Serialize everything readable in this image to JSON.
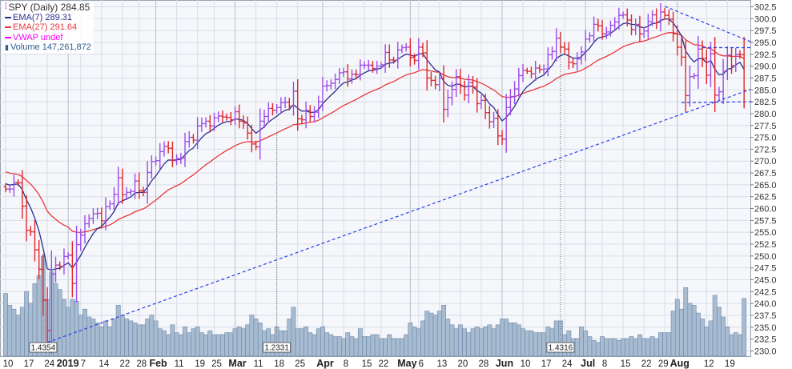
{
  "legend": {
    "price": "SPY (Daily) 284.85",
    "ema7": "EMA(7) 289.31",
    "ema27": "EMA(27) 291.64",
    "vwap": "VWAP undef",
    "volume": "Volume 147,261,872"
  },
  "colors": {
    "up": "#9b4dea",
    "down": "#e0262a",
    "ema7": "#2b2e8f",
    "ema27": "#e8393c",
    "vwap": "#ff00ff",
    "volume_fill": "#a7bbd1",
    "volume_stroke": "#6f89a8",
    "trendline": "#2b3fe8",
    "grid": "#d9dee7",
    "plot_bg": "#f5f7fb"
  },
  "chart_data": {
    "type": "ohlc",
    "title": "SPY (Daily)",
    "symbol": "SPY",
    "ylim": [
      230.0,
      302.5
    ],
    "y_tick_step": 2.5,
    "grid": true,
    "legend_placement": "top-left",
    "ema7_seed": 265.6,
    "ema27_seed": 268.0,
    "closes": [
      264.1,
      264.1,
      265.5,
      265.4,
      260.5,
      255.4,
      255.1,
      251.3,
      247.2,
      240.7,
      234.3,
      246.2,
      248.1,
      247.8,
      249.9,
      250.2,
      244.2,
      252.4,
      254.4,
      256.8,
      257.9,
      258.9,
      259.0,
      257.4,
      260.4,
      261.0,
      263.0,
      266.5,
      262.9,
      263.4,
      263.6,
      265.8,
      263.8,
      263.4,
      267.6,
      269.9,
      270.1,
      272.0,
      273.1,
      272.7,
      270.1,
      270.5,
      270.6,
      274.1,
      275.0,
      274.4,
      277.4,
      277.9,
      278.4,
      277.4,
      279.1,
      279.5,
      279.3,
      279.2,
      278.7,
      280.4,
      278.4,
      278.0,
      275.9,
      273.6,
      273.0,
      278.4,
      279.4,
      281.1,
      280.7,
      281.3,
      282.3,
      282.4,
      281.6,
      284.7,
      278.9,
      278.7,
      280.7,
      279.4,
      280.3,
      282.5,
      285.8,
      285.9,
      286.4,
      287.2,
      288.6,
      288.8,
      287.3,
      288.3,
      288.2,
      290.2,
      290.2,
      290.2,
      289.5,
      290.0,
      290.3,
      292.9,
      291.3,
      291.2,
      293.4,
      293.9,
      294.0,
      291.8,
      291.2,
      294.0,
      292.8,
      287.5,
      287.0,
      286.1,
      287.4,
      280.9,
      283.4,
      285.1,
      287.8,
      285.8,
      283.9,
      286.5,
      285.6,
      282.1,
      282.8,
      280.2,
      278.3,
      279.0,
      275.3,
      274.6,
      281.3,
      283.6,
      285.2,
      288.0,
      289.1,
      288.9,
      288.4,
      289.6,
      289.3,
      289.4,
      292.4,
      293.1,
      295.9,
      294.0,
      293.6,
      290.8,
      290.5,
      291.5,
      293.0,
      295.7,
      296.4,
      298.8,
      298.5,
      296.8,
      297.2,
      298.6,
      299.3,
      300.7,
      300.8,
      299.7,
      297.7,
      298.8,
      296.8,
      297.4,
      299.4,
      300.8,
      299.2,
      301.4,
      300.7,
      299.9,
      296.8,
      294.0,
      291.9,
      283.8,
      287.8,
      288.0,
      293.6,
      291.6,
      288.1,
      292.6,
      283.9,
      284.6,
      288.9,
      292.3,
      290.1,
      292.5,
      292.4,
      284.85
    ],
    "volume_millions": [
      160,
      130,
      120,
      105,
      125,
      165,
      135,
      185,
      205,
      255,
      145,
      215,
      185,
      170,
      145,
      125,
      145,
      140,
      105,
      120,
      100,
      95,
      85,
      75,
      90,
      75,
      95,
      130,
      105,
      95,
      90,
      85,
      80,
      80,
      95,
      105,
      90,
      70,
      65,
      55,
      80,
      60,
      55,
      75,
      60,
      70,
      75,
      60,
      55,
      65,
      55,
      55,
      55,
      60,
      60,
      70,
      75,
      70,
      80,
      105,
      95,
      85,
      65,
      70,
      55,
      75,
      65,
      65,
      95,
      125,
      70,
      70,
      75,
      60,
      55,
      70,
      75,
      60,
      55,
      50,
      50,
      45,
      60,
      50,
      45,
      70,
      50,
      50,
      55,
      55,
      45,
      45,
      55,
      45,
      45,
      45,
      55,
      85,
      75,
      70,
      90,
      115,
      110,
      105,
      115,
      130,
      95,
      80,
      70,
      80,
      70,
      60,
      70,
      75,
      70,
      75,
      80,
      70,
      80,
      95,
      95,
      85,
      85,
      80,
      70,
      65,
      65,
      60,
      60,
      60,
      75,
      70,
      90,
      90,
      55,
      65,
      45,
      45,
      75,
      65,
      50,
      40,
      35,
      50,
      45,
      45,
      45,
      40,
      45,
      45,
      50,
      45,
      55,
      45,
      45,
      50,
      45,
      60,
      60,
      60,
      115,
      145,
      120,
      175,
      135,
      130,
      110,
      95,
      75,
      90,
      155,
      125,
      100,
      75,
      55,
      60,
      55,
      147.26
    ],
    "x_ticks": [
      {
        "label": "10",
        "i": 0
      },
      {
        "label": "17",
        "i": 5
      },
      {
        "label": "24",
        "i": 10
      },
      {
        "label": "2019",
        "i": 15,
        "major": true
      },
      {
        "label": "7",
        "i": 18
      },
      {
        "label": "14",
        "i": 23
      },
      {
        "label": "22",
        "i": 28
      },
      {
        "label": "28",
        "i": 32
      },
      {
        "label": "Feb",
        "i": 36,
        "major": true
      },
      {
        "label": "11",
        "i": 41
      },
      {
        "label": "19",
        "i": 46
      },
      {
        "label": "25",
        "i": 50
      },
      {
        "label": "Mar",
        "i": 55,
        "major": true
      },
      {
        "label": "11",
        "i": 60
      },
      {
        "label": "18",
        "i": 65
      },
      {
        "label": "25",
        "i": 70
      },
      {
        "label": "Apr",
        "i": 76,
        "major": true
      },
      {
        "label": "8",
        "i": 81
      },
      {
        "label": "15",
        "i": 86
      },
      {
        "label": "22",
        "i": 90
      },
      {
        "label": "May",
        "i": 97,
        "major": true
      },
      {
        "label": "6",
        "i": 99
      },
      {
        "label": "13",
        "i": 104
      },
      {
        "label": "20",
        "i": 109
      },
      {
        "label": "28",
        "i": 114
      },
      {
        "label": "Jun",
        "i": 119,
        "major": true
      },
      {
        "label": "10",
        "i": 124
      },
      {
        "label": "17",
        "i": 129
      },
      {
        "label": "24",
        "i": 134
      },
      {
        "label": "Jul",
        "i": 139,
        "major": true
      },
      {
        "label": "8",
        "i": 143
      },
      {
        "label": "15",
        "i": 148
      },
      {
        "label": "22",
        "i": 153
      },
      {
        "label": "29",
        "i": 158
      },
      {
        "label": "Aug",
        "i": 161,
        "major": true
      },
      {
        "label": "12",
        "i": 168
      },
      {
        "label": "19",
        "i": 173
      }
    ],
    "annotations": [
      {
        "label": "1.4354",
        "i": 9,
        "from_price": 241.5
      },
      {
        "label": "1.2331",
        "i": 65,
        "from_price": 276.0
      },
      {
        "label": "1.4316",
        "i": 133,
        "from_price": 297.0
      }
    ],
    "trendlines": [
      {
        "name": "support-trendline",
        "i1": 10,
        "p1": 231.8,
        "i2": 178.5,
        "p2": 285.1
      },
      {
        "name": "resistance-trendline",
        "i1": 158,
        "p1": 302.6,
        "i2": 179,
        "p2": 295.0
      },
      {
        "name": "range-top-line",
        "i1": 167,
        "p1": 293.9,
        "i2": 179,
        "p2": 293.9
      },
      {
        "name": "range-bottom-line",
        "i1": 162,
        "p1": 282.3,
        "i2": 179,
        "p2": 282.5
      }
    ]
  }
}
